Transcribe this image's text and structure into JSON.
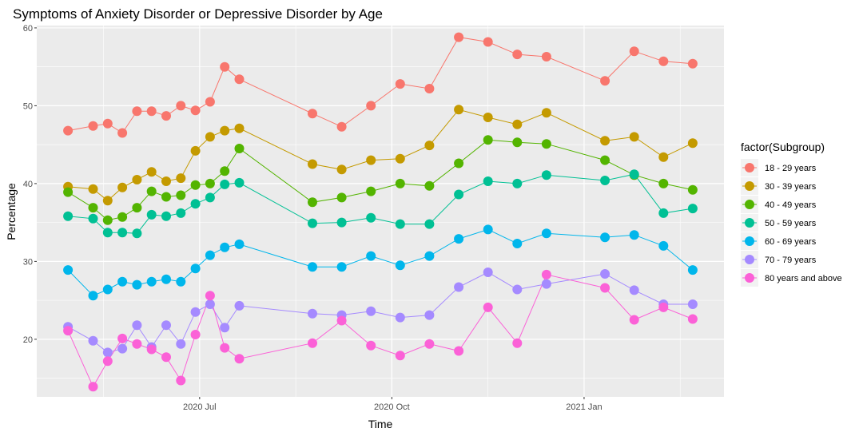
{
  "chart_data": {
    "type": "line",
    "title": "Symptoms of Anxiety Disorder or Depressive Disorder by Age",
    "xlabel": "Time",
    "ylabel": "Percentage",
    "x_ticks": [
      "2020 Jul",
      "2020 Oct",
      "2021 Jan"
    ],
    "y_ticks": [
      20,
      30,
      40,
      50,
      60
    ],
    "ylim": [
      12.6,
      60.3
    ],
    "grid": true,
    "legend_title": "factor(Subgroup)",
    "legend_position": "right",
    "x": [
      "2020-04-29",
      "2020-05-11",
      "2020-05-18",
      "2020-05-25",
      "2020-06-01",
      "2020-06-08",
      "2020-06-15",
      "2020-06-22",
      "2020-06-29",
      "2020-07-06",
      "2020-07-13",
      "2020-07-20",
      "2020-08-24",
      "2020-09-07",
      "2020-09-21",
      "2020-10-05",
      "2020-10-19",
      "2020-11-02",
      "2020-11-16",
      "2020-11-30",
      "2020-12-14",
      "2021-01-11",
      "2021-01-25",
      "2021-02-08",
      "2021-02-22"
    ],
    "series": [
      {
        "name": "18 - 29 years",
        "color": "#F8766D",
        "values": [
          46.8,
          47.4,
          47.7,
          46.5,
          49.3,
          49.3,
          48.7,
          50.0,
          49.4,
          50.5,
          55.0,
          53.4,
          49.0,
          47.3,
          50.0,
          52.8,
          52.2,
          58.8,
          58.2,
          56.6,
          56.3,
          53.2,
          57.0,
          55.7,
          55.4
        ]
      },
      {
        "name": "30 - 39 years",
        "color": "#C49A00",
        "values": [
          39.6,
          39.3,
          37.8,
          39.5,
          40.5,
          41.5,
          40.3,
          40.7,
          44.2,
          46.0,
          46.8,
          47.1,
          42.5,
          41.8,
          43.0,
          43.2,
          44.9,
          49.5,
          48.5,
          47.6,
          49.1,
          45.5,
          46.0,
          43.4,
          45.2
        ]
      },
      {
        "name": "40 - 49 years",
        "color": "#53B400",
        "values": [
          38.9,
          36.9,
          35.3,
          35.7,
          36.9,
          39.0,
          38.3,
          38.5,
          39.8,
          40.0,
          41.6,
          44.5,
          37.6,
          38.2,
          39.0,
          40.0,
          39.7,
          42.6,
          45.6,
          45.3,
          45.1,
          43.0,
          41.1,
          40.0,
          39.2
        ]
      },
      {
        "name": "50 - 59 years",
        "color": "#00C094",
        "values": [
          35.8,
          35.5,
          33.7,
          33.7,
          33.6,
          36.0,
          35.8,
          36.2,
          37.4,
          38.2,
          39.9,
          40.1,
          34.9,
          35.0,
          35.6,
          34.8,
          34.8,
          38.6,
          40.3,
          40.0,
          41.1,
          40.4,
          41.2,
          36.2,
          36.8
        ]
      },
      {
        "name": "60 - 69 years",
        "color": "#00B6EB",
        "values": [
          28.9,
          25.6,
          26.4,
          27.4,
          27.0,
          27.4,
          27.7,
          27.4,
          29.1,
          30.8,
          31.8,
          32.2,
          29.3,
          29.3,
          30.7,
          29.5,
          30.7,
          32.9,
          34.1,
          32.3,
          33.6,
          33.1,
          33.4,
          32.0,
          28.9
        ]
      },
      {
        "name": "70 - 79 years",
        "color": "#A58AFF",
        "values": [
          21.6,
          19.8,
          18.3,
          18.8,
          21.8,
          19.0,
          21.8,
          19.4,
          23.5,
          24.5,
          21.5,
          24.3,
          23.3,
          23.1,
          23.6,
          22.8,
          23.1,
          26.7,
          28.6,
          26.4,
          27.1,
          28.4,
          26.3,
          24.5,
          24.5
        ]
      },
      {
        "name": "80 years and above",
        "color": "#FB61D7",
        "values": [
          21.1,
          13.9,
          17.2,
          20.1,
          19.4,
          18.7,
          17.7,
          14.7,
          20.6,
          25.6,
          18.9,
          17.5,
          19.5,
          22.4,
          19.2,
          17.9,
          19.4,
          18.5,
          24.1,
          19.5,
          28.3,
          26.6,
          22.5,
          24.1,
          22.6
        ]
      }
    ]
  }
}
